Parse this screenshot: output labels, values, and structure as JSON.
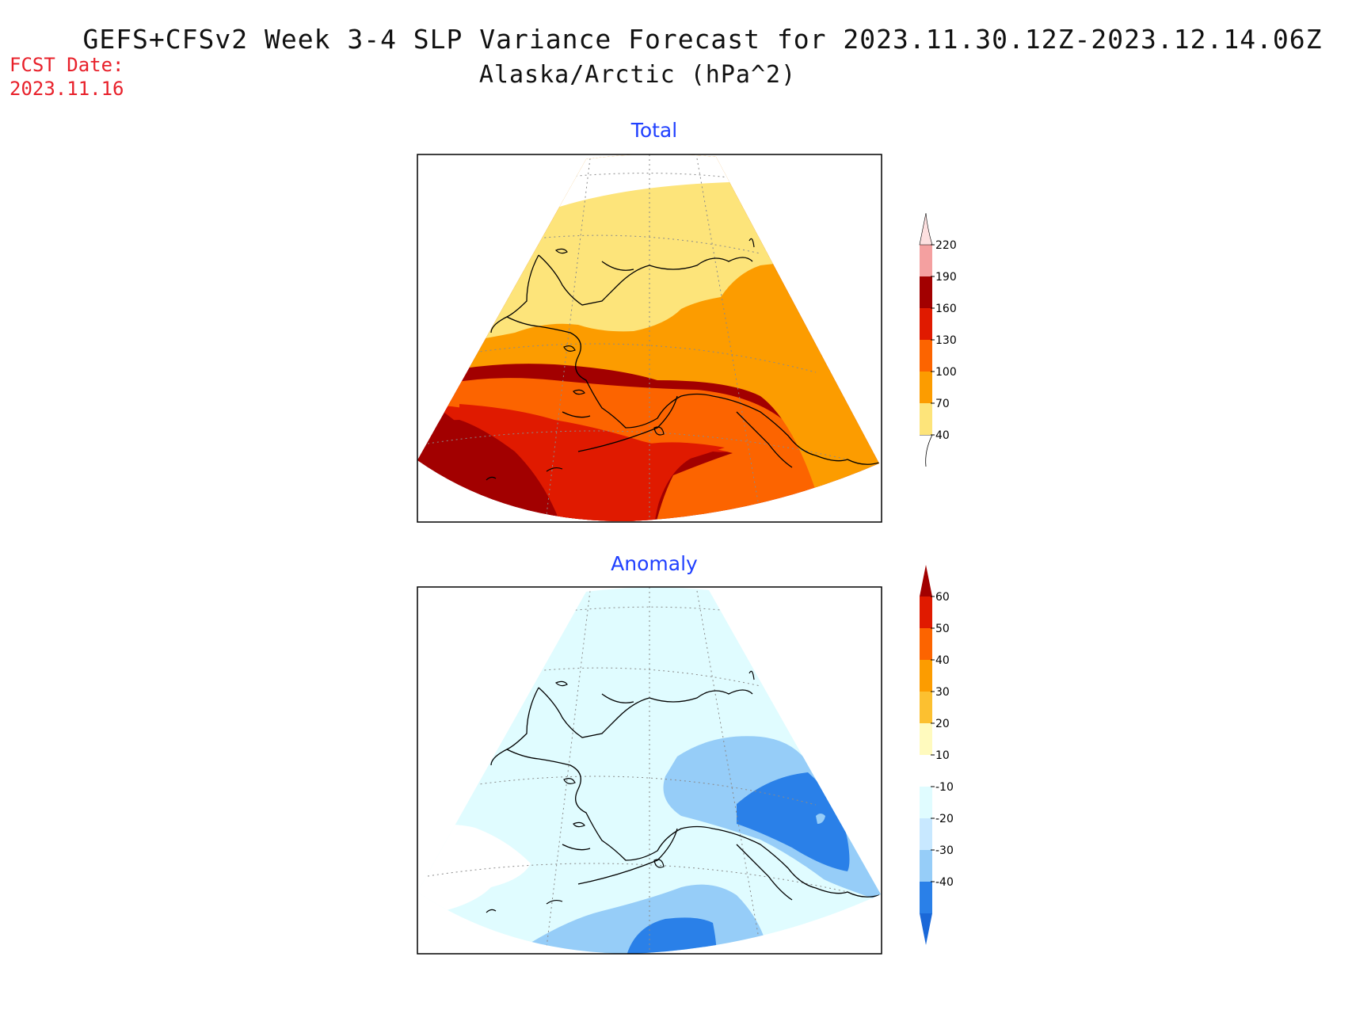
{
  "header": {
    "title": "GEFS+CFSv2 Week 3-4 SLP Variance Forecast for 2023.11.30.12Z-2023.12.14.06Z",
    "subtitle": "Alaska/Arctic (hPa^2)",
    "fcst_label": "FCST Date:",
    "fcst_date": "2023.11.16"
  },
  "panels": [
    {
      "title": "Total",
      "colorbar": {
        "labels": [
          "40",
          "70",
          "100",
          "130",
          "160",
          "190",
          "220"
        ],
        "colors": [
          "#ffffff",
          "#fde47a",
          "#fc9c00",
          "#fc6400",
          "#e01a00",
          "#a20000",
          "#f4a0a0",
          "#fde0e0"
        ]
      }
    },
    {
      "title": "Anomaly",
      "colorbar": {
        "labels": [
          "-40",
          "-30",
          "-20",
          "-10",
          "10",
          "20",
          "30",
          "40",
          "50",
          "60"
        ],
        "colors": [
          "#1a68d8",
          "#2a80e8",
          "#96cdf8",
          "#c8e8ff",
          "#e0fcff",
          "#ffffff",
          "#fffabe",
          "#fcc030",
          "#fc9c00",
          "#fc6400",
          "#e01a00",
          "#a20000"
        ]
      }
    }
  ]
}
